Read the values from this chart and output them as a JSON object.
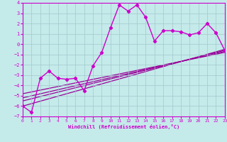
{
  "xlabel": "Windchill (Refroidissement éolien,°C)",
  "xlim": [
    0,
    23
  ],
  "ylim": [
    -7,
    4
  ],
  "yticks": [
    -7,
    -6,
    -5,
    -4,
    -3,
    -2,
    -1,
    0,
    1,
    2,
    3,
    4
  ],
  "xticks": [
    0,
    1,
    2,
    3,
    4,
    5,
    6,
    7,
    8,
    9,
    10,
    11,
    12,
    13,
    14,
    15,
    16,
    17,
    18,
    19,
    20,
    21,
    22,
    23
  ],
  "background_color": "#c5eaea",
  "grid_color": "#a0c8cc",
  "line_color": "#cc00cc",
  "curve1_x": [
    0,
    1,
    2,
    3,
    4,
    5,
    6,
    7,
    8,
    9,
    10,
    11,
    12,
    13,
    14,
    15,
    16,
    17,
    18,
    19,
    20,
    21,
    22,
    23
  ],
  "curve1_y": [
    -6.0,
    -6.6,
    -3.3,
    -2.6,
    -3.3,
    -3.4,
    -3.3,
    -4.5,
    -2.1,
    -0.8,
    1.6,
    3.8,
    3.2,
    3.8,
    2.6,
    0.3,
    1.3,
    1.3,
    1.2,
    0.9,
    1.1,
    2.0,
    1.1,
    -0.6
  ],
  "reg_lines": [
    {
      "x0": 0,
      "y0": -6.0,
      "x1": 23,
      "y1": -0.5
    },
    {
      "x0": 0,
      "y0": -5.5,
      "x1": 23,
      "y1": -0.6
    },
    {
      "x0": 0,
      "y0": -5.2,
      "x1": 23,
      "y1": -0.7
    },
    {
      "x0": 0,
      "y0": -4.8,
      "x1": 23,
      "y1": -0.8
    }
  ],
  "reg_color": "#990099"
}
